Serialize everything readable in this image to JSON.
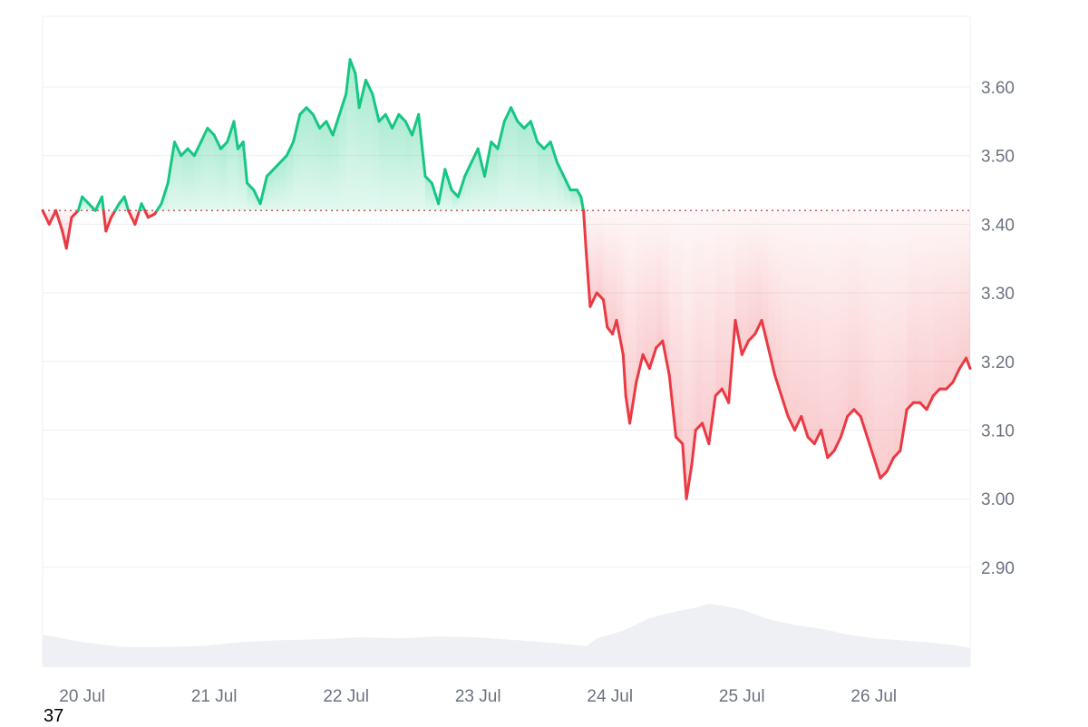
{
  "colors": {
    "up": "#16c784",
    "down": "#ea3943",
    "grid": "#eeeff2",
    "baseline": "#c9575d",
    "volume": "#eef0f3",
    "axis_text": "#6b7280"
  },
  "corner_text": "37",
  "chart_data": {
    "type": "area",
    "title": "",
    "xlabel": "",
    "ylabel": "",
    "x_ticks": [
      "20 Jul",
      "21 Jul",
      "22 Jul",
      "23 Jul",
      "24 Jul",
      "25 Jul",
      "26 Jul"
    ],
    "y_ticks": [
      "2.90",
      "3.00",
      "3.10",
      "3.20",
      "3.30",
      "3.40",
      "3.50",
      "3.60"
    ],
    "ylim": [
      2.76,
      3.7
    ],
    "xlim": [
      -0.3,
      6.73
    ],
    "baseline": 3.42,
    "grid": true,
    "series": [
      {
        "values": [
          [
            -0.3,
            3.42
          ],
          [
            -0.25,
            3.4
          ],
          [
            -0.2,
            3.42
          ],
          [
            -0.15,
            3.39
          ],
          [
            -0.12,
            3.365
          ],
          [
            -0.08,
            3.41
          ],
          [
            -0.03,
            3.42
          ],
          [
            0.0,
            3.44
          ],
          [
            0.05,
            3.43
          ],
          [
            0.1,
            3.42
          ],
          [
            0.15,
            3.44
          ],
          [
            0.18,
            3.39
          ],
          [
            0.22,
            3.41
          ],
          [
            0.28,
            3.43
          ],
          [
            0.32,
            3.44
          ],
          [
            0.35,
            3.42
          ],
          [
            0.4,
            3.4
          ],
          [
            0.45,
            3.43
          ],
          [
            0.5,
            3.41
          ],
          [
            0.55,
            3.415
          ],
          [
            0.6,
            3.43
          ],
          [
            0.65,
            3.46
          ],
          [
            0.7,
            3.52
          ],
          [
            0.75,
            3.5
          ],
          [
            0.8,
            3.51
          ],
          [
            0.85,
            3.5
          ],
          [
            0.9,
            3.52
          ],
          [
            0.95,
            3.54
          ],
          [
            1.0,
            3.53
          ],
          [
            1.05,
            3.51
          ],
          [
            1.1,
            3.52
          ],
          [
            1.15,
            3.55
          ],
          [
            1.18,
            3.51
          ],
          [
            1.22,
            3.52
          ],
          [
            1.25,
            3.46
          ],
          [
            1.3,
            3.45
          ],
          [
            1.35,
            3.43
          ],
          [
            1.4,
            3.47
          ],
          [
            1.45,
            3.48
          ],
          [
            1.5,
            3.49
          ],
          [
            1.55,
            3.5
          ],
          [
            1.6,
            3.52
          ],
          [
            1.65,
            3.56
          ],
          [
            1.7,
            3.57
          ],
          [
            1.75,
            3.56
          ],
          [
            1.8,
            3.54
          ],
          [
            1.85,
            3.55
          ],
          [
            1.9,
            3.53
          ],
          [
            1.95,
            3.56
          ],
          [
            2.0,
            3.59
          ],
          [
            2.03,
            3.64
          ],
          [
            2.07,
            3.62
          ],
          [
            2.1,
            3.57
          ],
          [
            2.15,
            3.61
          ],
          [
            2.2,
            3.59
          ],
          [
            2.25,
            3.55
          ],
          [
            2.3,
            3.56
          ],
          [
            2.35,
            3.54
          ],
          [
            2.4,
            3.56
          ],
          [
            2.45,
            3.55
          ],
          [
            2.5,
            3.53
          ],
          [
            2.55,
            3.56
          ],
          [
            2.6,
            3.47
          ],
          [
            2.65,
            3.46
          ],
          [
            2.7,
            3.43
          ],
          [
            2.75,
            3.48
          ],
          [
            2.8,
            3.45
          ],
          [
            2.85,
            3.44
          ],
          [
            2.9,
            3.47
          ],
          [
            2.95,
            3.49
          ],
          [
            3.0,
            3.51
          ],
          [
            3.05,
            3.47
          ],
          [
            3.1,
            3.52
          ],
          [
            3.15,
            3.51
          ],
          [
            3.2,
            3.55
          ],
          [
            3.25,
            3.57
          ],
          [
            3.3,
            3.55
          ],
          [
            3.35,
            3.54
          ],
          [
            3.4,
            3.55
          ],
          [
            3.45,
            3.52
          ],
          [
            3.5,
            3.51
          ],
          [
            3.55,
            3.52
          ],
          [
            3.6,
            3.49
          ],
          [
            3.65,
            3.47
          ],
          [
            3.7,
            3.45
          ],
          [
            3.75,
            3.45
          ],
          [
            3.78,
            3.44
          ],
          [
            3.8,
            3.42
          ],
          [
            3.82,
            3.36
          ],
          [
            3.85,
            3.28
          ],
          [
            3.9,
            3.3
          ],
          [
            3.95,
            3.29
          ],
          [
            3.98,
            3.25
          ],
          [
            4.02,
            3.24
          ],
          [
            4.05,
            3.26
          ],
          [
            4.1,
            3.21
          ],
          [
            4.12,
            3.15
          ],
          [
            4.15,
            3.11
          ],
          [
            4.2,
            3.17
          ],
          [
            4.25,
            3.21
          ],
          [
            4.3,
            3.19
          ],
          [
            4.35,
            3.22
          ],
          [
            4.4,
            3.23
          ],
          [
            4.45,
            3.18
          ],
          [
            4.5,
            3.09
          ],
          [
            4.55,
            3.08
          ],
          [
            4.58,
            3.0
          ],
          [
            4.62,
            3.05
          ],
          [
            4.65,
            3.1
          ],
          [
            4.7,
            3.11
          ],
          [
            4.75,
            3.08
          ],
          [
            4.8,
            3.15
          ],
          [
            4.85,
            3.16
          ],
          [
            4.9,
            3.14
          ],
          [
            4.95,
            3.26
          ],
          [
            5.0,
            3.21
          ],
          [
            5.05,
            3.23
          ],
          [
            5.1,
            3.24
          ],
          [
            5.15,
            3.26
          ],
          [
            5.2,
            3.22
          ],
          [
            5.25,
            3.18
          ],
          [
            5.3,
            3.15
          ],
          [
            5.35,
            3.12
          ],
          [
            5.4,
            3.1
          ],
          [
            5.45,
            3.12
          ],
          [
            5.5,
            3.09
          ],
          [
            5.55,
            3.08
          ],
          [
            5.6,
            3.1
          ],
          [
            5.65,
            3.06
          ],
          [
            5.7,
            3.07
          ],
          [
            5.75,
            3.09
          ],
          [
            5.8,
            3.12
          ],
          [
            5.85,
            3.13
          ],
          [
            5.9,
            3.12
          ],
          [
            5.95,
            3.09
          ],
          [
            6.0,
            3.06
          ],
          [
            6.05,
            3.03
          ],
          [
            6.1,
            3.04
          ],
          [
            6.15,
            3.06
          ],
          [
            6.2,
            3.07
          ],
          [
            6.25,
            3.13
          ],
          [
            6.3,
            3.14
          ],
          [
            6.35,
            3.14
          ],
          [
            6.4,
            3.13
          ],
          [
            6.45,
            3.15
          ],
          [
            6.5,
            3.16
          ],
          [
            6.55,
            3.16
          ],
          [
            6.6,
            3.17
          ],
          [
            6.65,
            3.19
          ],
          [
            6.7,
            3.205
          ],
          [
            6.73,
            3.19
          ]
        ]
      }
    ],
    "volume": [
      [
        -0.3,
        0.34
      ],
      [
        0.0,
        0.26
      ],
      [
        0.3,
        0.21
      ],
      [
        0.6,
        0.21
      ],
      [
        0.9,
        0.22
      ],
      [
        1.2,
        0.26
      ],
      [
        1.5,
        0.28
      ],
      [
        1.8,
        0.29
      ],
      [
        2.1,
        0.31
      ],
      [
        2.4,
        0.3
      ],
      [
        2.7,
        0.32
      ],
      [
        3.0,
        0.31
      ],
      [
        3.3,
        0.28
      ],
      [
        3.6,
        0.25
      ],
      [
        3.82,
        0.22
      ],
      [
        3.9,
        0.3
      ],
      [
        4.1,
        0.38
      ],
      [
        4.3,
        0.51
      ],
      [
        4.5,
        0.58
      ],
      [
        4.65,
        0.62
      ],
      [
        4.75,
        0.66
      ],
      [
        4.85,
        0.64
      ],
      [
        5.0,
        0.6
      ],
      [
        5.2,
        0.5
      ],
      [
        5.4,
        0.44
      ],
      [
        5.6,
        0.4
      ],
      [
        5.8,
        0.34
      ],
      [
        6.0,
        0.3
      ],
      [
        6.2,
        0.28
      ],
      [
        6.4,
        0.26
      ],
      [
        6.6,
        0.23
      ],
      [
        6.73,
        0.2
      ]
    ]
  }
}
